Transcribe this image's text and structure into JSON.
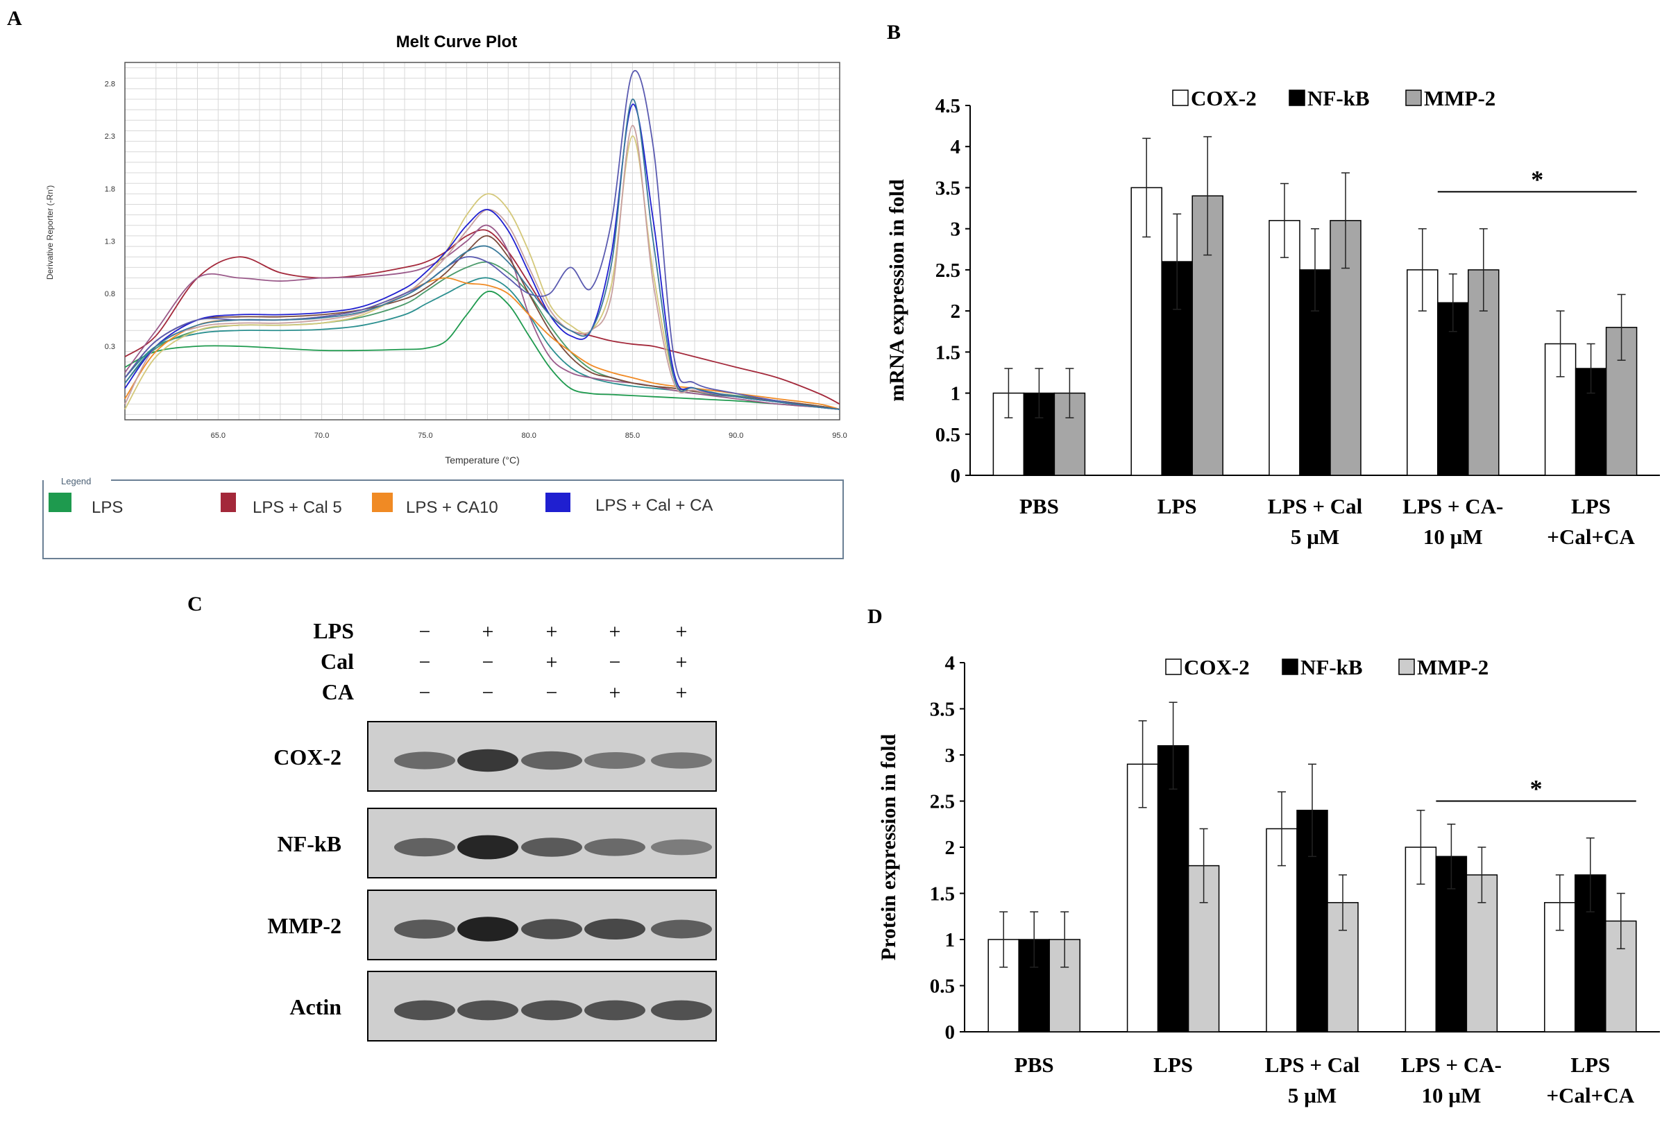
{
  "panels": {
    "A": {
      "letter": "A",
      "title": "Melt Curve Plot",
      "ylabel": "Derivative Reporter (-Rn')",
      "xlabel": "Temperature (°C)",
      "yticks": [
        "2.8",
        "2.3",
        "1.8",
        "1.3",
        "0.8",
        "0.3"
      ],
      "xticks": [
        "65.0",
        "70.0",
        "75.0",
        "80.0",
        "85.0",
        "90.0",
        "95.0"
      ],
      "legend_title": "Legend",
      "legend": [
        {
          "label": "LPS",
          "color": "#1e9a4e"
        },
        {
          "label": "LPS + Cal 5",
          "color": "#a3283a"
        },
        {
          "label": "LPS + CA10",
          "color": "#f08a24"
        },
        {
          "label": "LPS + Cal + CA",
          "color": "#1f1fd0"
        }
      ]
    },
    "B": {
      "letter": "B"
    },
    "C": {
      "letter": "C",
      "treatments": [
        {
          "name": "LPS",
          "signs": [
            "−",
            "+",
            "+",
            "+",
            "+"
          ]
        },
        {
          "name": "Cal",
          "signs": [
            "−",
            "−",
            "+",
            "−",
            "+"
          ]
        },
        {
          "name": "CA",
          "signs": [
            "−",
            "−",
            "−",
            "+",
            "+"
          ]
        }
      ],
      "blots": [
        {
          "name": "COX-2",
          "intensity": [
            0.55,
            0.85,
            0.6,
            0.5,
            0.48
          ]
        },
        {
          "name": "NF-kB",
          "intensity": [
            0.6,
            0.95,
            0.65,
            0.55,
            0.45
          ]
        },
        {
          "name": "MMP-2",
          "intensity": [
            0.65,
            0.98,
            0.72,
            0.75,
            0.62
          ]
        },
        {
          "name": "Actin",
          "intensity": [
            0.7,
            0.7,
            0.7,
            0.7,
            0.7
          ]
        }
      ]
    },
    "D": {
      "letter": "D"
    }
  },
  "chart_data": [
    {
      "type": "line",
      "panel": "A",
      "title": "Melt Curve Plot",
      "xlabel": "Temperature (°C)",
      "ylabel": "Derivative Reporter (-Rn')",
      "xlim": [
        60.5,
        95.0
      ],
      "ylim": [
        -0.4,
        3.0
      ],
      "x": [
        60.5,
        62,
        64,
        66,
        68,
        70,
        72,
        74,
        75,
        76,
        77,
        78,
        79,
        80,
        81,
        82,
        83,
        84,
        85,
        86,
        87,
        88,
        90,
        92,
        94,
        95
      ],
      "series": [
        {
          "group": "LPS",
          "color": "#1e9a4e",
          "values": [
            0.1,
            0.25,
            0.3,
            0.3,
            0.28,
            0.26,
            0.26,
            0.27,
            0.28,
            0.35,
            0.6,
            0.82,
            0.7,
            0.4,
            0.1,
            -0.1,
            -0.15,
            -0.16,
            -0.17,
            -0.18,
            -0.19,
            -0.2,
            -0.22,
            -0.25,
            -0.28,
            -0.3
          ]
        },
        {
          "group": "LPS",
          "color": "#2a8f8f",
          "values": [
            0.0,
            0.3,
            0.42,
            0.45,
            0.45,
            0.46,
            0.5,
            0.6,
            0.7,
            0.8,
            0.9,
            0.95,
            0.85,
            0.6,
            0.3,
            0.1,
            0.0,
            -0.05,
            -0.08,
            -0.1,
            -0.12,
            -0.15,
            -0.18,
            -0.22,
            -0.27,
            -0.3
          ]
        },
        {
          "group": "LPS",
          "color": "#4a9a6a",
          "values": [
            -0.05,
            0.28,
            0.45,
            0.5,
            0.5,
            0.52,
            0.58,
            0.7,
            0.82,
            0.95,
            1.05,
            1.1,
            1.0,
            0.8,
            0.5,
            0.25,
            0.08,
            -0.0,
            -0.05,
            -0.08,
            -0.1,
            -0.13,
            -0.17,
            -0.22,
            -0.27,
            -0.3
          ]
        },
        {
          "group": "LPS + Cal 5",
          "color": "#a3283a",
          "values": [
            0.2,
            0.4,
            0.95,
            1.15,
            1.0,
            0.95,
            0.98,
            1.05,
            1.1,
            1.2,
            1.35,
            1.4,
            1.2,
            0.9,
            0.6,
            0.45,
            0.4,
            0.35,
            0.32,
            0.3,
            0.25,
            0.2,
            0.1,
            0.0,
            -0.15,
            -0.25
          ]
        },
        {
          "group": "LPS + Cal 5",
          "color": "#9a5a8a",
          "values": [
            0.05,
            0.45,
            0.95,
            0.95,
            0.92,
            0.95,
            0.96,
            1.0,
            1.05,
            1.15,
            1.3,
            1.45,
            1.2,
            0.6,
            0.2,
            0.05,
            0.0,
            -0.03,
            -0.05,
            -0.08,
            -0.12,
            -0.15,
            -0.2,
            -0.25,
            -0.28,
            -0.3
          ]
        },
        {
          "group": "LPS + Cal 5",
          "color": "#7a4a3a",
          "values": [
            0.0,
            0.35,
            0.55,
            0.58,
            0.58,
            0.6,
            0.65,
            0.75,
            0.85,
            1.0,
            1.2,
            1.35,
            1.15,
            0.8,
            0.45,
            0.2,
            0.05,
            -0.0,
            -0.05,
            -0.08,
            -0.1,
            -0.13,
            -0.18,
            -0.22,
            -0.27,
            -0.3
          ]
        },
        {
          "group": "LPS + CA10",
          "color": "#f08a24",
          "values": [
            -0.2,
            0.25,
            0.5,
            0.55,
            0.55,
            0.58,
            0.65,
            0.8,
            0.9,
            0.95,
            0.9,
            0.88,
            0.8,
            0.6,
            0.4,
            0.25,
            0.12,
            0.05,
            -0.0,
            -0.05,
            -0.08,
            -0.1,
            -0.15,
            -0.2,
            -0.25,
            -0.3
          ]
        },
        {
          "group": "LPS + CA10",
          "color": "#d4c87a",
          "values": [
            -0.3,
            0.2,
            0.45,
            0.5,
            0.5,
            0.52,
            0.6,
            0.8,
            0.95,
            1.2,
            1.55,
            1.75,
            1.6,
            1.2,
            0.7,
            0.5,
            0.45,
            0.9,
            2.3,
            1.0,
            0.0,
            -0.1,
            -0.18,
            -0.23,
            -0.28,
            -0.3
          ]
        },
        {
          "group": "LPS + CA10",
          "color": "#c8a0a0",
          "values": [
            -0.25,
            0.3,
            0.48,
            0.52,
            0.52,
            0.55,
            0.62,
            0.8,
            0.95,
            1.15,
            1.4,
            1.6,
            1.45,
            1.05,
            0.65,
            0.45,
            0.45,
            0.8,
            2.4,
            0.9,
            -0.05,
            -0.12,
            -0.18,
            -0.23,
            -0.28,
            -0.3
          ]
        },
        {
          "group": "LPS + Cal + CA",
          "color": "#1f1fd0",
          "values": [
            -0.1,
            0.3,
            0.55,
            0.6,
            0.6,
            0.62,
            0.68,
            0.85,
            1.0,
            1.2,
            1.45,
            1.6,
            1.4,
            1.0,
            0.6,
            0.4,
            0.45,
            1.2,
            2.6,
            1.5,
            0.05,
            -0.1,
            -0.18,
            -0.23,
            -0.28,
            -0.3
          ]
        },
        {
          "group": "LPS + Cal + CA",
          "color": "#5a5ab0",
          "values": [
            0.0,
            0.35,
            0.55,
            0.55,
            0.55,
            0.58,
            0.65,
            0.8,
            0.9,
            1.05,
            1.15,
            1.1,
            0.95,
            0.8,
            0.8,
            1.05,
            0.85,
            1.5,
            2.9,
            2.2,
            0.2,
            -0.05,
            -0.15,
            -0.22,
            -0.28,
            -0.3
          ]
        },
        {
          "group": "LPS + Cal + CA",
          "color": "#3a7a9a",
          "values": [
            -0.05,
            0.3,
            0.5,
            0.55,
            0.55,
            0.57,
            0.63,
            0.78,
            0.9,
            1.05,
            1.2,
            1.25,
            1.1,
            0.85,
            0.6,
            0.45,
            0.45,
            1.1,
            2.65,
            1.3,
            0.0,
            -0.1,
            -0.18,
            -0.23,
            -0.28,
            -0.3
          ]
        }
      ]
    },
    {
      "type": "bar",
      "panel": "B",
      "ylabel": "mRNA expression in fold",
      "ylim": [
        0,
        4.5
      ],
      "yticks": [
        "0",
        "0.5",
        "1",
        "1.5",
        "2",
        "2.5",
        "3",
        "3.5",
        "4",
        "4.5"
      ],
      "categories": [
        [
          "PBS"
        ],
        [
          "LPS"
        ],
        [
          "LPS + Cal",
          "5 µM"
        ],
        [
          "LPS + CA-",
          "10 µM"
        ],
        [
          "LPS",
          "+Cal+CA"
        ]
      ],
      "series": [
        {
          "name": "COX-2",
          "color": "#ffffff",
          "values": [
            1.0,
            3.5,
            3.1,
            2.5,
            1.6
          ],
          "errors": [
            0.3,
            0.6,
            0.45,
            0.5,
            0.4
          ]
        },
        {
          "name": "NF-kB",
          "color": "#000000",
          "values": [
            1.0,
            2.6,
            2.5,
            2.1,
            1.3
          ],
          "errors": [
            0.3,
            0.58,
            0.5,
            0.35,
            0.3
          ]
        },
        {
          "name": "MMP-2",
          "color": "#a6a6a6",
          "values": [
            1.0,
            3.4,
            3.1,
            2.5,
            1.8
          ],
          "errors": [
            0.3,
            0.72,
            0.58,
            0.5,
            0.4
          ]
        }
      ],
      "significance": {
        "label": "*",
        "from": 3,
        "to": 4,
        "y": 3.45
      }
    },
    {
      "type": "bar",
      "panel": "D",
      "ylabel": "Protein expression in fold",
      "ylim": [
        0,
        4
      ],
      "yticks": [
        "0",
        "0.5",
        "1",
        "1.5",
        "2",
        "2.5",
        "3",
        "3.5",
        "4"
      ],
      "categories": [
        [
          "PBS"
        ],
        [
          "LPS"
        ],
        [
          "LPS + Cal",
          "5 µM"
        ],
        [
          "LPS + CA-",
          "10 µM"
        ],
        [
          "LPS",
          "+Cal+CA"
        ]
      ],
      "series": [
        {
          "name": "COX-2",
          "color": "#ffffff",
          "values": [
            1.0,
            2.9,
            2.2,
            2.0,
            1.4
          ],
          "errors": [
            0.3,
            0.47,
            0.4,
            0.4,
            0.3
          ]
        },
        {
          "name": "NF-kB",
          "color": "#000000",
          "values": [
            1.0,
            3.1,
            2.4,
            1.9,
            1.7
          ],
          "errors": [
            0.3,
            0.47,
            0.5,
            0.35,
            0.4
          ]
        },
        {
          "name": "MMP-2",
          "color": "#cccccc",
          "values": [
            1.0,
            1.8,
            1.4,
            1.7,
            1.2
          ],
          "errors": [
            0.3,
            0.4,
            0.3,
            0.3,
            0.3
          ]
        }
      ],
      "significance": {
        "label": "*",
        "from": 3,
        "to": 4,
        "y": 2.5
      }
    }
  ]
}
